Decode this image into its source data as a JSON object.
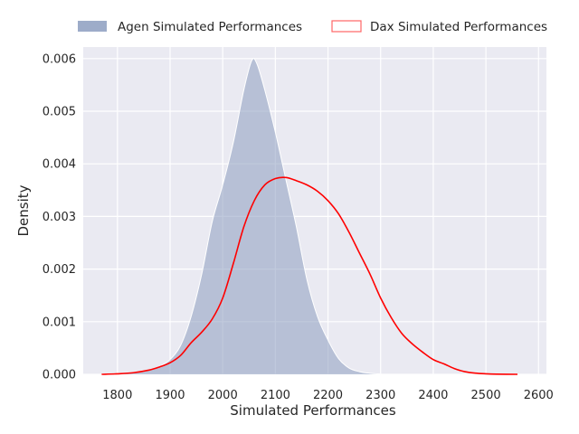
{
  "chart_data": {
    "type": "area",
    "xlabel": "Simulated Performances",
    "ylabel": "Density",
    "xlim": [
      1735,
      2615
    ],
    "ylim": [
      0,
      0.00622
    ],
    "x_ticks": [
      1800,
      1900,
      2000,
      2100,
      2200,
      2300,
      2400,
      2500,
      2600
    ],
    "x_tick_labels": [
      "1800",
      "1900",
      "2000",
      "2100",
      "2200",
      "2300",
      "2400",
      "2500",
      "2600"
    ],
    "y_ticks": [
      0,
      0.001,
      0.002,
      0.003,
      0.004,
      0.005,
      0.006
    ],
    "y_tick_labels": [
      "0.000",
      "0.001",
      "0.002",
      "0.003",
      "0.004",
      "0.005",
      "0.006"
    ],
    "grid": true,
    "legend_position": "top",
    "series": [
      {
        "name": "Agen Simulated Performances",
        "style": "filled",
        "color": "#8c9dc0",
        "points": [
          [
            1765,
            0.0
          ],
          [
            1800,
            1e-05
          ],
          [
            1830,
            3e-05
          ],
          [
            1860,
            8e-05
          ],
          [
            1880,
            0.00015
          ],
          [
            1900,
            0.00028
          ],
          [
            1920,
            0.00055
          ],
          [
            1940,
            0.0011
          ],
          [
            1960,
            0.0019
          ],
          [
            1980,
            0.0029
          ],
          [
            2000,
            0.0036
          ],
          [
            2020,
            0.0044
          ],
          [
            2040,
            0.0054
          ],
          [
            2055,
            0.00596
          ],
          [
            2065,
            0.0059
          ],
          [
            2080,
            0.0054
          ],
          [
            2100,
            0.0046
          ],
          [
            2120,
            0.0037
          ],
          [
            2140,
            0.0028
          ],
          [
            2160,
            0.0018
          ],
          [
            2180,
            0.0011
          ],
          [
            2200,
            0.00065
          ],
          [
            2220,
            0.0003
          ],
          [
            2240,
            0.00012
          ],
          [
            2260,
            5e-05
          ],
          [
            2280,
            2e-05
          ],
          [
            2300,
            5e-06
          ]
        ]
      },
      {
        "name": "Dax Simulated Performances",
        "style": "line",
        "color": "#ff0000",
        "points": [
          [
            1770,
            0.0
          ],
          [
            1800,
            1e-05
          ],
          [
            1830,
            3e-05
          ],
          [
            1860,
            8e-05
          ],
          [
            1880,
            0.00014
          ],
          [
            1900,
            0.00022
          ],
          [
            1920,
            0.00036
          ],
          [
            1940,
            0.0006
          ],
          [
            1960,
            0.0008
          ],
          [
            1980,
            0.00105
          ],
          [
            2000,
            0.00145
          ],
          [
            2020,
            0.0021
          ],
          [
            2040,
            0.0028
          ],
          [
            2060,
            0.0033
          ],
          [
            2080,
            0.0036
          ],
          [
            2100,
            0.00372
          ],
          [
            2120,
            0.00374
          ],
          [
            2140,
            0.00368
          ],
          [
            2160,
            0.0036
          ],
          [
            2180,
            0.00348
          ],
          [
            2200,
            0.0033
          ],
          [
            2220,
            0.00305
          ],
          [
            2240,
            0.0027
          ],
          [
            2260,
            0.0023
          ],
          [
            2280,
            0.0019
          ],
          [
            2300,
            0.00145
          ],
          [
            2320,
            0.00108
          ],
          [
            2340,
            0.00078
          ],
          [
            2360,
            0.00058
          ],
          [
            2380,
            0.00042
          ],
          [
            2400,
            0.00028
          ],
          [
            2420,
            0.0002
          ],
          [
            2440,
            0.00011
          ],
          [
            2460,
            5e-05
          ],
          [
            2480,
            2.2e-05
          ],
          [
            2500,
            1e-05
          ],
          [
            2520,
            4e-06
          ],
          [
            2560,
            0.0
          ]
        ]
      }
    ]
  }
}
